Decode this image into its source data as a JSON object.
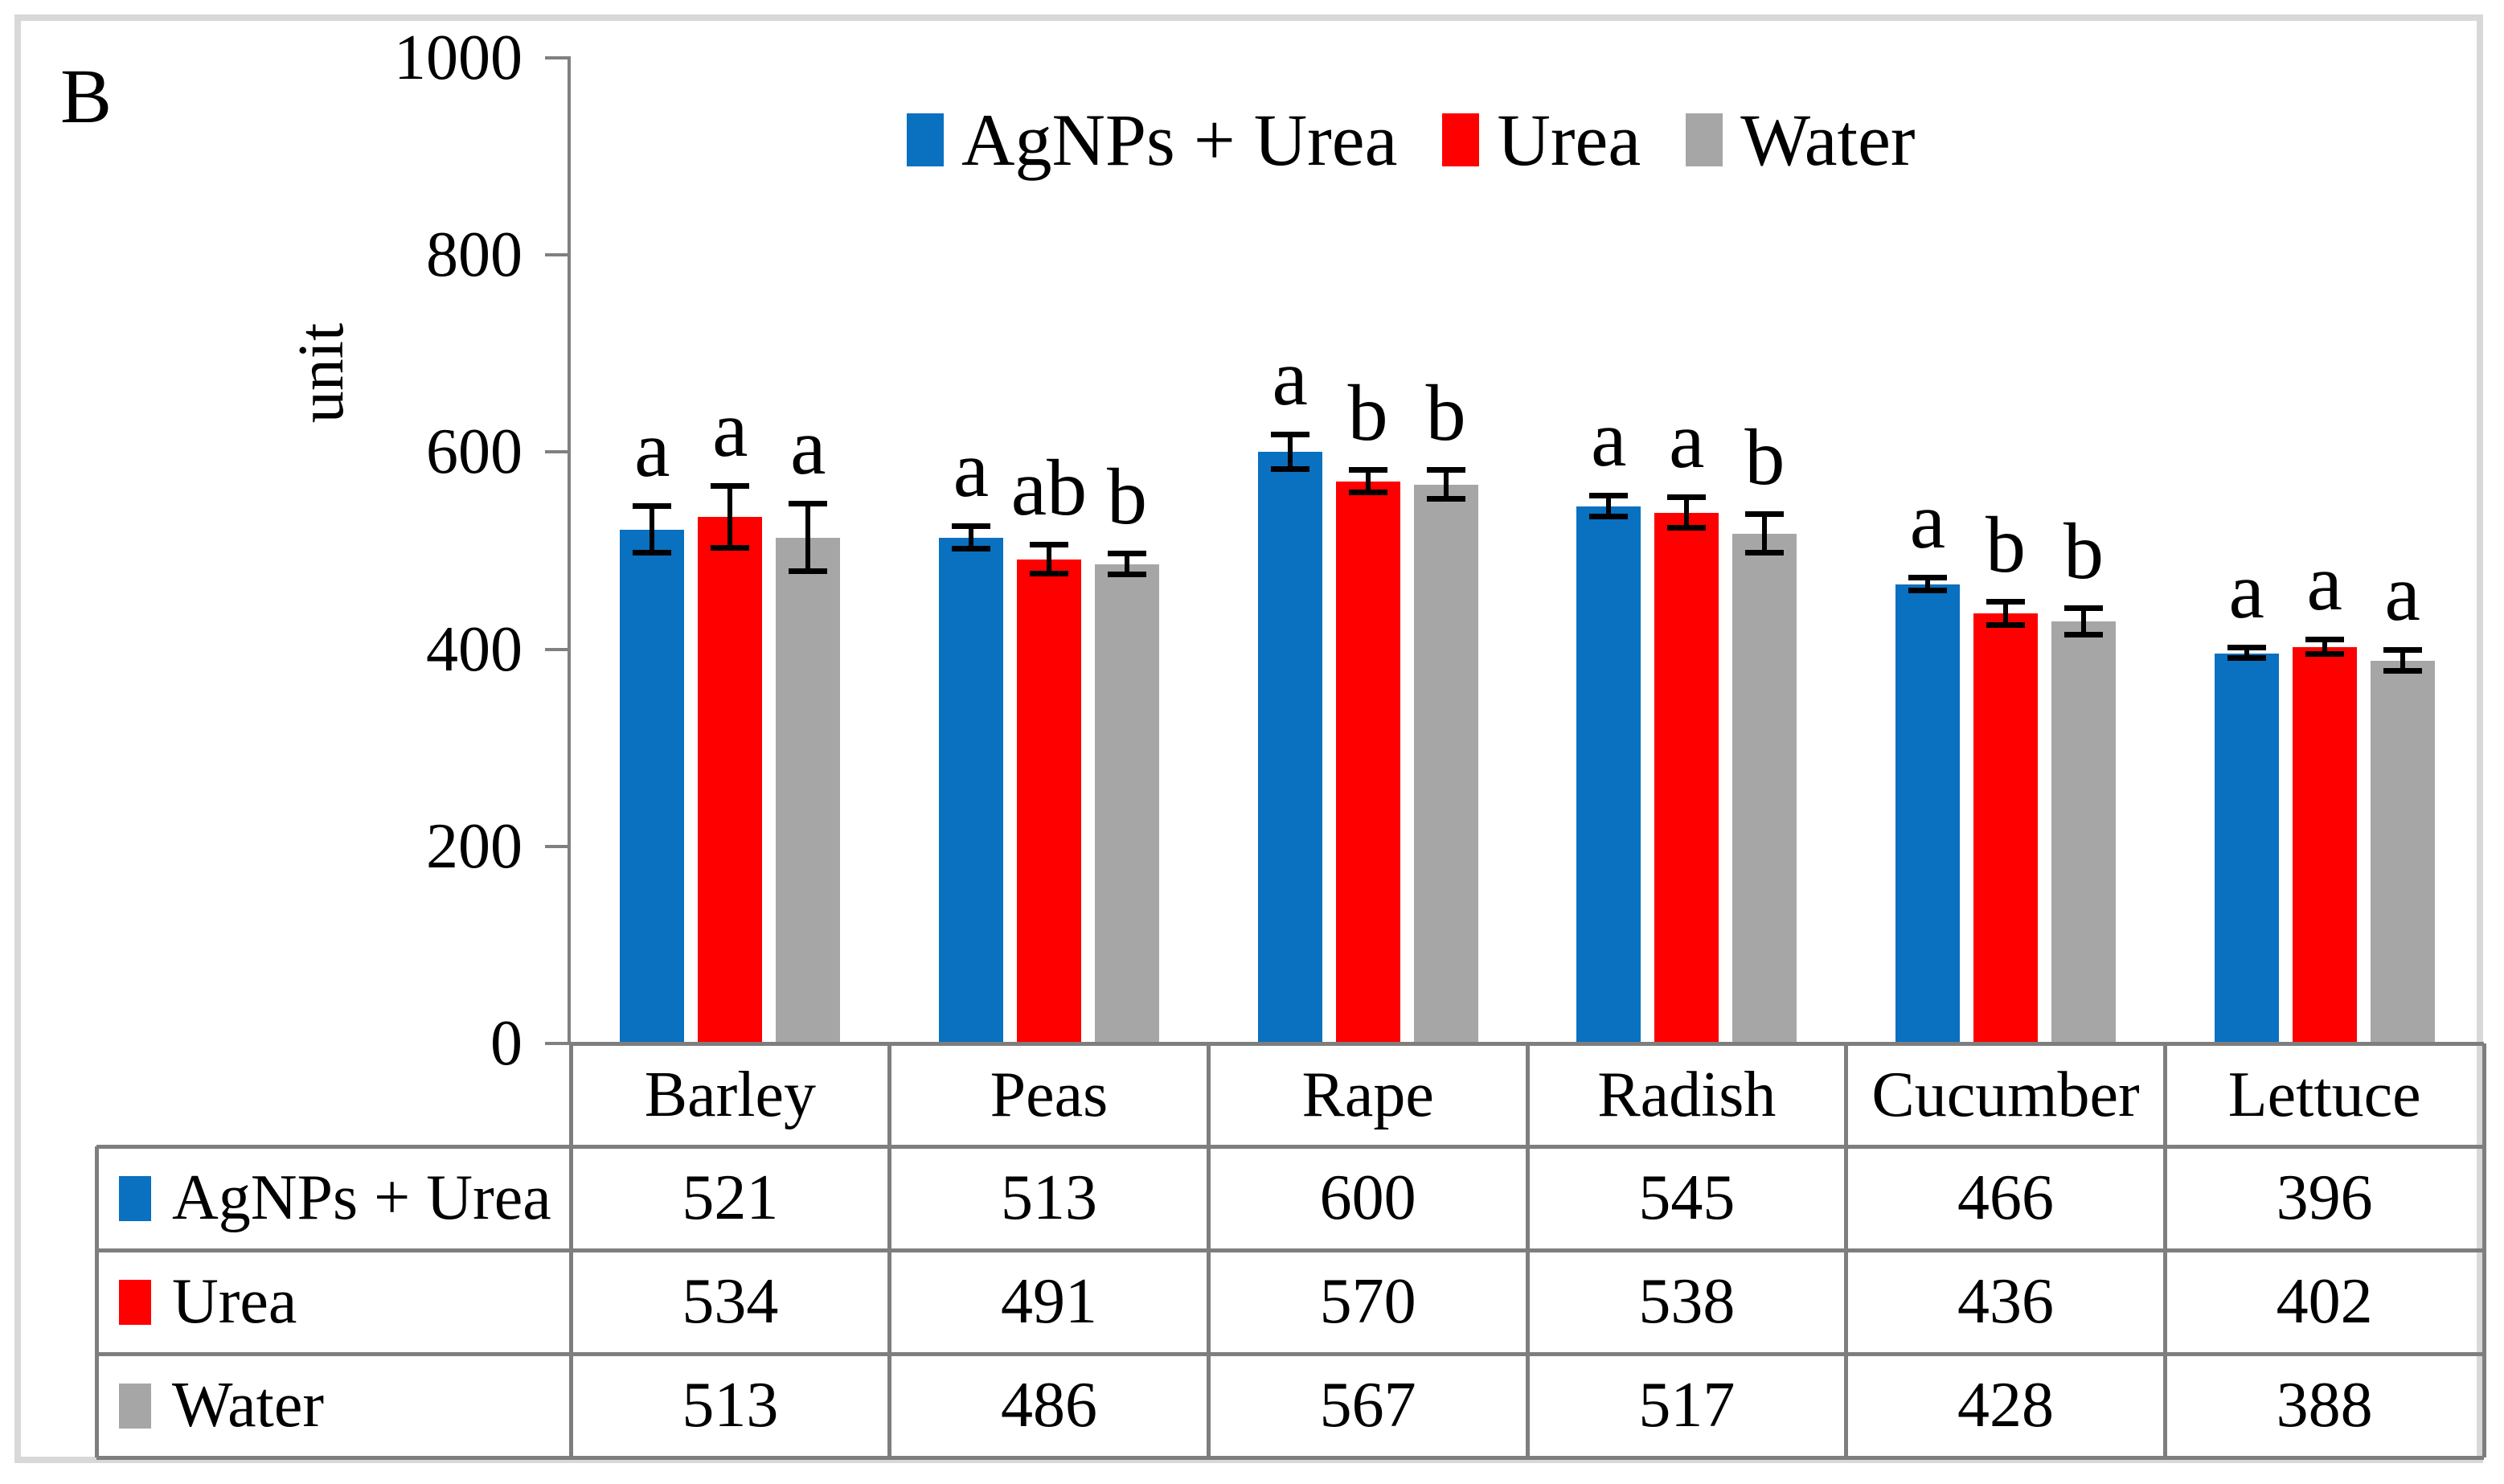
{
  "figure": {
    "panel_label": "B",
    "frame_color": "#d8d8d8"
  },
  "chart_data": {
    "type": "bar",
    "title": "",
    "ylabel": "unit",
    "xlabel": "",
    "ylim": [
      0,
      1000
    ],
    "yticks": [
      0,
      200,
      400,
      600,
      800,
      1000
    ],
    "grid": false,
    "legend_position": "top-center",
    "has_data_table": true,
    "error_bars": true,
    "axis_color": "#808080",
    "table_border_color": "#7e7e7e",
    "categories": [
      "Barley",
      "Peas",
      "Rape",
      "Radish",
      "Cucumber",
      "Lettuce"
    ],
    "series": [
      {
        "name": "AgNPs + Urea",
        "color": "#0a70c0",
        "values": [
          521,
          513,
          600,
          545,
          466,
          396
        ],
        "errors": [
          26,
          14,
          20,
          13,
          9,
          8
        ],
        "sig_letters": [
          "a",
          "a",
          "a",
          "a",
          "a",
          "a"
        ]
      },
      {
        "name": "Urea",
        "color": "#fe0000",
        "values": [
          534,
          491,
          570,
          538,
          436,
          402
        ],
        "errors": [
          34,
          17,
          14,
          18,
          14,
          10
        ],
        "sig_letters": [
          "a",
          "ab",
          "b",
          "a",
          "b",
          "a"
        ]
      },
      {
        "name": "Water",
        "color": "#a6a6a6",
        "values": [
          513,
          486,
          567,
          517,
          428,
          388
        ],
        "errors": [
          37,
          13,
          17,
          22,
          16,
          13
        ],
        "sig_letters": [
          "a",
          "b",
          "b",
          "b",
          "b",
          "a"
        ]
      }
    ]
  }
}
